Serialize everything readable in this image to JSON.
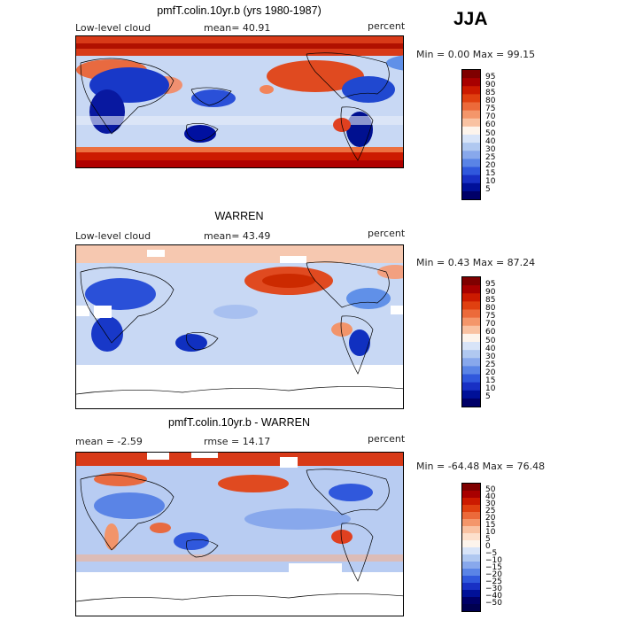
{
  "season": "JJA",
  "panels": [
    {
      "title": "pmfT.colin.10yr.b (yrs 1980-1987)",
      "left_label": "Low-level cloud",
      "mid_label": "mean=  40.91",
      "right_label": "percent",
      "minmax": "Min =   0.00 Max =  99.15",
      "ticks": [
        "95",
        "90",
        "85",
        "80",
        "75",
        "70",
        "60",
        "50",
        "40",
        "30",
        "25",
        "20",
        "15",
        "10",
        "5"
      ],
      "colors": [
        "#7f0000",
        "#a80000",
        "#cc1a00",
        "#e04010",
        "#ec6a3a",
        "#f4966a",
        "#f9c2a2",
        "#fdf4ec",
        "#d8e4f8",
        "#b0c8f0",
        "#88a8ec",
        "#5a84e6",
        "#3058dc",
        "#1830c4",
        "#001098",
        "#000068"
      ],
      "data_max": "99.15"
    },
    {
      "title": "WARREN",
      "left_label": "Low-level cloud",
      "mid_label": "mean=  43.49",
      "right_label": "percent",
      "minmax": "Min =   0.43 Max =  87.24",
      "ticks": [
        "95",
        "90",
        "85",
        "80",
        "75",
        "70",
        "60",
        "50",
        "40",
        "30",
        "25",
        "20",
        "15",
        "10",
        "5"
      ],
      "colors": [
        "#7f0000",
        "#a80000",
        "#cc1a00",
        "#e04010",
        "#ec6a3a",
        "#f4966a",
        "#f9c2a2",
        "#fdf4ec",
        "#d8e4f8",
        "#b0c8f0",
        "#88a8ec",
        "#5a84e6",
        "#3058dc",
        "#1830c4",
        "#001098",
        "#000068"
      ]
    },
    {
      "title": "pmfT.colin.10yr.b - WARREN",
      "left_label": "mean =  -2.59",
      "mid_label": "rmse =  14.17",
      "right_label": "percent",
      "minmax": "Min = -64.48 Max =  76.48",
      "ticks": [
        "50",
        "40",
        "30",
        "25",
        "20",
        "15",
        "10",
        "5",
        "0",
        "−5",
        "−10",
        "−15",
        "−20",
        "−25",
        "−30",
        "−40",
        "−50"
      ],
      "colors": [
        "#7f0000",
        "#a80000",
        "#cc1a00",
        "#e04010",
        "#ec6a3a",
        "#f4966a",
        "#f9c2a2",
        "#fde0cc",
        "#fdf4ec",
        "#d8e4f8",
        "#b0c8f0",
        "#88a8ec",
        "#5a84e6",
        "#3058dc",
        "#1830c4",
        "#001098",
        "#000068",
        "#000050"
      ]
    }
  ]
}
